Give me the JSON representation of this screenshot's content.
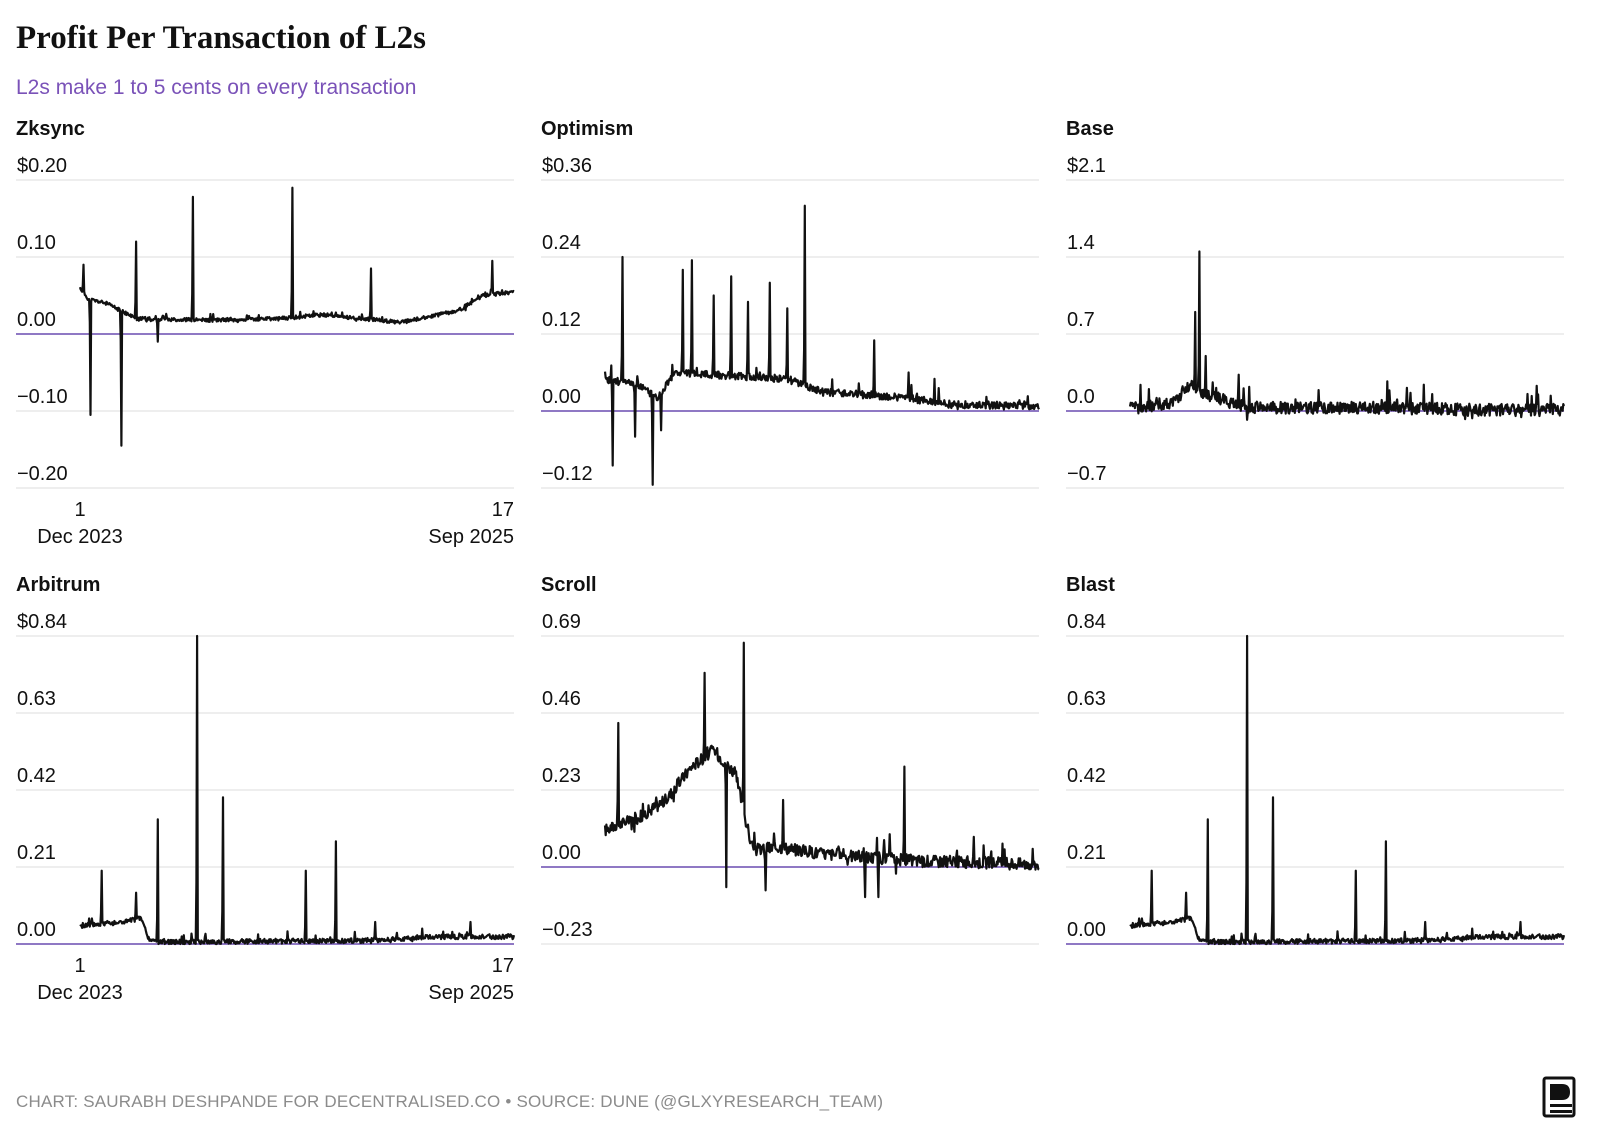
{
  "title": "Profit Per Transaction of L2s",
  "subtitle": "L2s make 1 to 5 cents on every transaction",
  "footer": "CHART: SAURABH DESHPANDE FOR DECENTRALISED.CO • SOURCE: DUNE (@GLXYRESEARCH_TEAM)",
  "colors": {
    "line": "#111111",
    "zero_line": "#6a4bb0",
    "grid": "#dddddd",
    "subtitle": "#7a52b8"
  },
  "x_axis": {
    "start": [
      "1",
      "Dec 2023"
    ],
    "end": [
      "17",
      "Sep 2025"
    ]
  },
  "chart_data": [
    {
      "type": "line",
      "name": "Zksync",
      "ylim": [
        -0.2,
        0.2
      ],
      "ticks": [
        "$0.20",
        "0.10",
        "0.00",
        "−0.10",
        "−0.20"
      ],
      "show_x_axis": true,
      "base": [
        [
          0,
          0.06
        ],
        [
          0.02,
          0.045
        ],
        [
          0.06,
          0.04
        ],
        [
          0.13,
          0.02
        ],
        [
          0.3,
          0.018
        ],
        [
          0.46,
          0.02
        ],
        [
          0.56,
          0.025
        ],
        [
          0.74,
          0.015
        ],
        [
          0.8,
          0.022
        ],
        [
          0.87,
          0.03
        ],
        [
          0.93,
          0.05
        ],
        [
          1,
          0.055
        ]
      ],
      "noise": 0.006,
      "seed": 11,
      "spikes": [
        [
          0.008,
          0.09
        ],
        [
          0.024,
          -0.105
        ],
        [
          0.095,
          -0.145
        ],
        [
          0.13,
          0.12
        ],
        [
          0.18,
          -0.01
        ],
        [
          0.26,
          0.178
        ],
        [
          0.49,
          0.19
        ],
        [
          0.67,
          0.085
        ],
        [
          0.95,
          0.095
        ]
      ]
    },
    {
      "type": "line",
      "name": "Optimism",
      "ylim": [
        -0.12,
        0.36
      ],
      "ticks": [
        "$0.36",
        "0.24",
        "0.12",
        "0.00",
        "−0.12"
      ],
      "show_x_axis": false,
      "base": [
        [
          0,
          0.05
        ],
        [
          0.08,
          0.04
        ],
        [
          0.12,
          0.02
        ],
        [
          0.16,
          0.06
        ],
        [
          0.42,
          0.05
        ],
        [
          0.5,
          0.03
        ],
        [
          0.7,
          0.02
        ],
        [
          0.8,
          0.01
        ],
        [
          1,
          0.008
        ]
      ],
      "noise": 0.012,
      "seed": 23,
      "spikes": [
        [
          0.018,
          -0.085
        ],
        [
          0.04,
          0.24
        ],
        [
          0.07,
          -0.04
        ],
        [
          0.11,
          -0.115
        ],
        [
          0.13,
          -0.03
        ],
        [
          0.18,
          0.22
        ],
        [
          0.2,
          0.235
        ],
        [
          0.25,
          0.18
        ],
        [
          0.29,
          0.21
        ],
        [
          0.33,
          0.17
        ],
        [
          0.38,
          0.2
        ],
        [
          0.42,
          0.16
        ],
        [
          0.46,
          0.32
        ],
        [
          0.62,
          0.11
        ],
        [
          0.7,
          0.06
        ],
        [
          0.76,
          0.05
        ]
      ]
    },
    {
      "type": "line",
      "name": "Base",
      "ylim": [
        -0.7,
        2.1
      ],
      "ticks": [
        "$2.1",
        "1.4",
        "0.7",
        "0.0",
        "−0.7"
      ],
      "show_x_axis": false,
      "base": [
        [
          0,
          0.02
        ],
        [
          0.1,
          0.08
        ],
        [
          0.14,
          0.25
        ],
        [
          0.17,
          0.15
        ],
        [
          0.22,
          0.1
        ],
        [
          0.27,
          0.03
        ],
        [
          0.5,
          0.03
        ],
        [
          0.6,
          0.03
        ],
        [
          0.8,
          0.01
        ],
        [
          1,
          0.01
        ]
      ],
      "noise": 0.02,
      "seed": 37,
      "spikes": [
        [
          0.15,
          0.9
        ],
        [
          0.16,
          1.45
        ],
        [
          0.175,
          0.5
        ],
        [
          0.25,
          0.33
        ],
        [
          0.27,
          -0.08
        ],
        [
          0.44,
          0.08
        ],
        [
          0.58,
          0.1
        ]
      ]
    },
    {
      "type": "line",
      "name": "Arbitrum",
      "ylim": [
        0,
        0.84
      ],
      "ticks": [
        "$0.84",
        "0.63",
        "0.42",
        "0.21",
        "0.00"
      ],
      "show_x_axis": true,
      "base": [
        [
          0,
          0.05
        ],
        [
          0.1,
          0.06
        ],
        [
          0.14,
          0.07
        ],
        [
          0.16,
          0.01
        ],
        [
          0.18,
          0.005
        ],
        [
          0.7,
          0.01
        ],
        [
          0.8,
          0.02
        ],
        [
          1,
          0.02
        ]
      ],
      "noise": 0.008,
      "seed": 5,
      "spikes": [
        [
          0.05,
          0.2
        ],
        [
          0.13,
          0.14
        ],
        [
          0.18,
          0.34
        ],
        [
          0.27,
          0.84
        ],
        [
          0.33,
          0.4
        ],
        [
          0.52,
          0.2
        ],
        [
          0.59,
          0.28
        ],
        [
          0.68,
          0.06
        ],
        [
          0.9,
          0.06
        ]
      ]
    },
    {
      "type": "line",
      "name": "Scroll",
      "ylim": [
        -0.23,
        0.69
      ],
      "ticks": [
        "0.69",
        "0.46",
        "0.23",
        "0.00",
        "−0.23"
      ],
      "show_x_axis": false,
      "base": [
        [
          0,
          0.11
        ],
        [
          0.08,
          0.15
        ],
        [
          0.14,
          0.2
        ],
        [
          0.2,
          0.3
        ],
        [
          0.25,
          0.35
        ],
        [
          0.3,
          0.28
        ],
        [
          0.34,
          0.05
        ],
        [
          0.4,
          0.06
        ],
        [
          0.5,
          0.04
        ],
        [
          0.6,
          0.03
        ],
        [
          0.7,
          0.02
        ],
        [
          1,
          0.008
        ]
      ],
      "noise": 0.02,
      "seed": 17,
      "spikes": [
        [
          0.03,
          0.43
        ],
        [
          0.23,
          0.58
        ],
        [
          0.28,
          -0.06
        ],
        [
          0.32,
          0.67
        ],
        [
          0.37,
          -0.07
        ],
        [
          0.41,
          0.2
        ],
        [
          0.6,
          -0.09
        ],
        [
          0.63,
          -0.09
        ],
        [
          0.69,
          0.3
        ],
        [
          0.67,
          -0.02
        ]
      ]
    },
    {
      "type": "line",
      "name": "Blast",
      "ylim": [
        0,
        0.84
      ],
      "ticks": [
        "0.84",
        "0.63",
        "0.42",
        "0.21",
        "0.00"
      ],
      "show_x_axis": false,
      "base": [
        [
          0,
          0.05
        ],
        [
          0.1,
          0.06
        ],
        [
          0.14,
          0.07
        ],
        [
          0.16,
          0.01
        ],
        [
          0.18,
          0.005
        ],
        [
          0.7,
          0.01
        ],
        [
          0.8,
          0.02
        ],
        [
          1,
          0.02
        ]
      ],
      "noise": 0.008,
      "seed": 5,
      "spikes": [
        [
          0.05,
          0.2
        ],
        [
          0.13,
          0.14
        ],
        [
          0.18,
          0.34
        ],
        [
          0.27,
          0.84
        ],
        [
          0.33,
          0.4
        ],
        [
          0.52,
          0.2
        ],
        [
          0.59,
          0.28
        ],
        [
          0.68,
          0.06
        ],
        [
          0.9,
          0.06
        ]
      ]
    }
  ]
}
